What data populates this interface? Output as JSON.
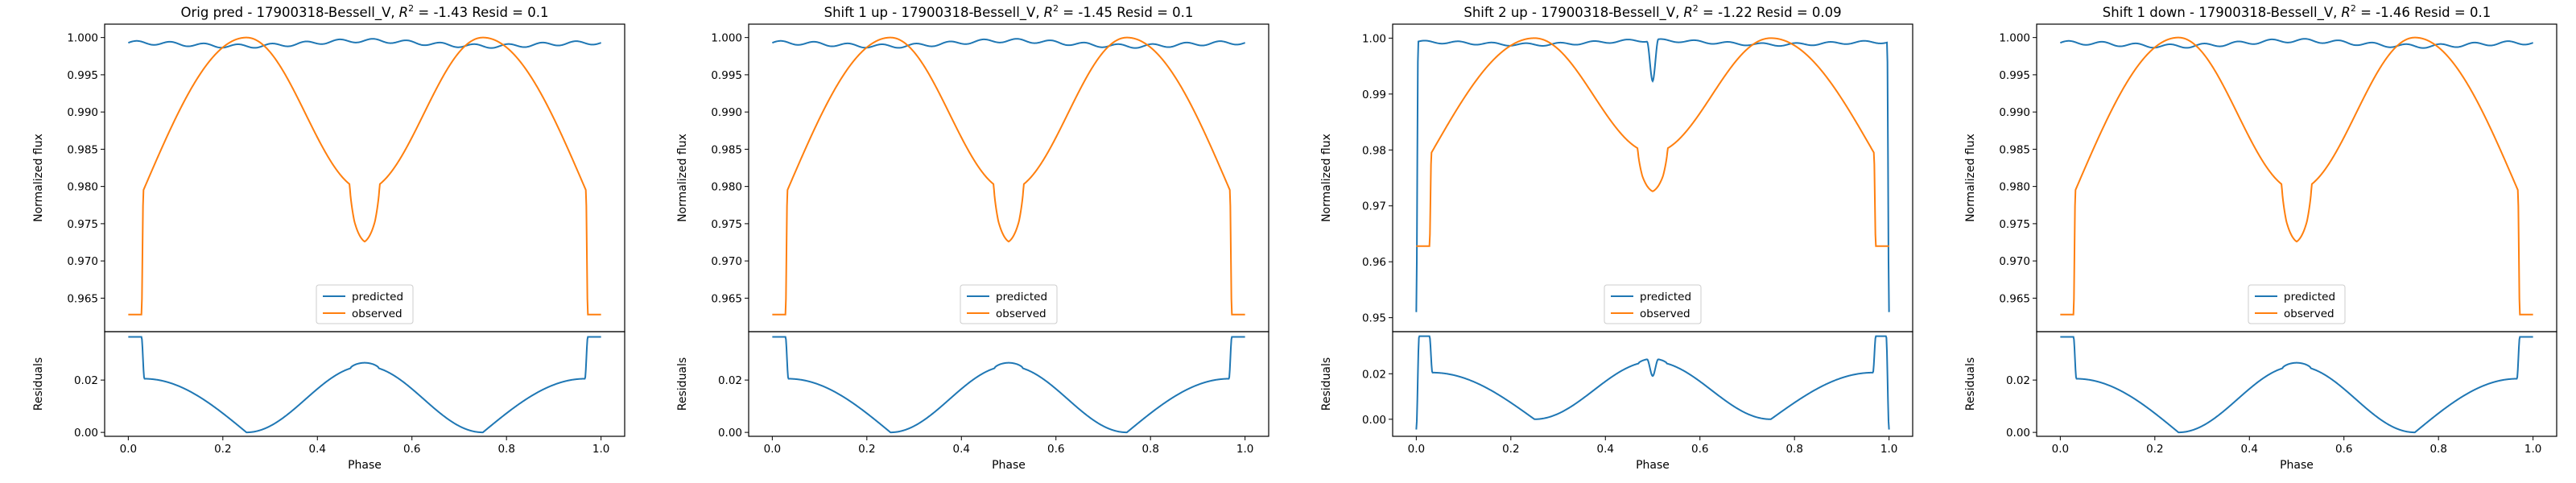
{
  "colors": {
    "predicted": "#1f77b4",
    "observed": "#ff7f0e",
    "axes": "#000000",
    "background": "#ffffff"
  },
  "chart_data": [
    {
      "type": "line",
      "title": "Orig pred - 17900318-Bessell_V, R² = -1.43 Resid = 0.1",
      "title_prefix": "Orig pred - 17900318-Bessell_V,",
      "r2_label": "R",
      "r2_exp": "2",
      "r2_value": " = -1.43",
      "resid_text": " Resid = 0.1",
      "xlabel": "Phase",
      "ylabel_top": "Normalized flux",
      "ylabel_bottom": "Residuals",
      "xlim": [
        -0.05,
        1.05
      ],
      "ylim_top": [
        0.9605,
        1.0018
      ],
      "ylim_bottom": [
        -0.0015,
        0.0385
      ],
      "xticks": [
        0.0,
        0.2,
        0.4,
        0.6,
        0.8,
        1.0
      ],
      "xtick_labels": [
        "0.0",
        "0.2",
        "0.4",
        "0.6",
        "0.8",
        "1.0"
      ],
      "yticks_top": [
        0.965,
        0.97,
        0.975,
        0.98,
        0.985,
        0.99,
        0.995,
        1.0
      ],
      "ytick_labels_top": [
        "0.965",
        "0.970",
        "0.975",
        "0.980",
        "0.985",
        "0.990",
        "0.995",
        "1.000"
      ],
      "yticks_bottom": [
        0.0,
        0.02
      ],
      "ytick_labels_bottom": [
        "0.00",
        "0.02"
      ],
      "legend": {
        "position": "lower center",
        "entries": [
          "predicted",
          "observed"
        ]
      },
      "series": [
        {
          "name": "predicted",
          "kind": "flat",
          "level": 0.9993,
          "dip_depth": 0,
          "edge_low": null
        },
        {
          "name": "observed",
          "kind": "lightcurve",
          "top": 1.0,
          "mid": 0.9795,
          "edge": 0.9628,
          "notch_bottom": 0.9738
        }
      ],
      "residuals": {
        "name": "predicted - observed",
        "peak": 0.0365,
        "secondary_peak": 0.0254,
        "min": 0.0
      }
    },
    {
      "type": "line",
      "title": "Shift 1 up - 17900318-Bessell_V, R² = -1.45 Resid = 0.1",
      "title_prefix": "Shift 1 up - 17900318-Bessell_V,",
      "r2_label": "R",
      "r2_exp": "2",
      "r2_value": " = -1.45",
      "resid_text": " Resid = 0.1",
      "xlabel": "Phase",
      "ylabel_top": "Normalized flux",
      "ylabel_bottom": "Residuals",
      "xlim": [
        -0.05,
        1.05
      ],
      "ylim_top": [
        0.9605,
        1.0018
      ],
      "ylim_bottom": [
        -0.0015,
        0.0385
      ],
      "xticks": [
        0.0,
        0.2,
        0.4,
        0.6,
        0.8,
        1.0
      ],
      "xtick_labels": [
        "0.0",
        "0.2",
        "0.4",
        "0.6",
        "0.8",
        "1.0"
      ],
      "yticks_top": [
        0.965,
        0.97,
        0.975,
        0.98,
        0.985,
        0.99,
        0.995,
        1.0
      ],
      "ytick_labels_top": [
        "0.965",
        "0.970",
        "0.975",
        "0.980",
        "0.985",
        "0.990",
        "0.995",
        "1.000"
      ],
      "yticks_bottom": [
        0.0,
        0.02
      ],
      "ytick_labels_bottom": [
        "0.00",
        "0.02"
      ],
      "legend": {
        "position": "lower center",
        "entries": [
          "predicted",
          "observed"
        ]
      },
      "series": [
        {
          "name": "predicted",
          "kind": "flat",
          "level": 0.9993,
          "dip_depth": 0,
          "edge_low": null
        },
        {
          "name": "observed",
          "kind": "lightcurve",
          "top": 1.0,
          "mid": 0.9795,
          "edge": 0.9628,
          "notch_bottom": 0.9738
        }
      ],
      "residuals": {
        "name": "predicted - observed",
        "peak": 0.0365,
        "secondary_peak": 0.0254,
        "min": 0.0
      }
    },
    {
      "type": "line",
      "title": "Shift 2 up - 17900318-Bessell_V, R² = -1.22 Resid = 0.09",
      "title_prefix": "Shift 2 up - 17900318-Bessell_V,",
      "r2_label": "R",
      "r2_exp": "2",
      "r2_value": " = -1.22",
      "resid_text": " Resid = 0.09",
      "xlabel": "Phase",
      "ylabel_top": "Normalized flux",
      "ylabel_bottom": "Residuals",
      "xlim": [
        -0.05,
        1.05
      ],
      "ylim_top": [
        0.9475,
        1.0025
      ],
      "ylim_bottom": [
        -0.0075,
        0.0385
      ],
      "xticks": [
        0.0,
        0.2,
        0.4,
        0.6,
        0.8,
        1.0
      ],
      "xtick_labels": [
        "0.0",
        "0.2",
        "0.4",
        "0.6",
        "0.8",
        "1.0"
      ],
      "yticks_top": [
        0.95,
        0.96,
        0.97,
        0.98,
        0.99,
        1.0
      ],
      "ytick_labels_top": [
        "0.95",
        "0.96",
        "0.97",
        "0.98",
        "0.99",
        "1.00"
      ],
      "yticks_bottom": [
        0.0,
        0.02
      ],
      "ytick_labels_bottom": [
        "0.00",
        "0.02"
      ],
      "legend": {
        "position": "lower center",
        "entries": [
          "predicted",
          "observed"
        ]
      },
      "series": [
        {
          "name": "predicted",
          "kind": "flat",
          "level": 0.9993,
          "dip_depth": 0.0073,
          "edge_low": 0.951
        },
        {
          "name": "observed",
          "kind": "lightcurve",
          "top": 1.0,
          "mid": 0.9795,
          "edge": 0.9628,
          "notch_bottom": 0.9738
        }
      ],
      "residuals": {
        "name": "predicted - observed",
        "peak": 0.0365,
        "secondary_peak": 0.0254,
        "min": 0.0,
        "edge_low": -0.0045,
        "center_dip": 0.019
      }
    },
    {
      "type": "line",
      "title": "Shift 1 down - 17900318-Bessell_V, R² = -1.46 Resid = 0.1",
      "title_prefix": "Shift 1 down - 17900318-Bessell_V,",
      "r2_label": "R",
      "r2_exp": "2",
      "r2_value": " = -1.46",
      "resid_text": " Resid = 0.1",
      "xlabel": "Phase",
      "ylabel_top": "Normalized flux",
      "ylabel_bottom": "Residuals",
      "xlim": [
        -0.05,
        1.05
      ],
      "ylim_top": [
        0.9605,
        1.0018
      ],
      "ylim_bottom": [
        -0.0015,
        0.0385
      ],
      "xticks": [
        0.0,
        0.2,
        0.4,
        0.6,
        0.8,
        1.0
      ],
      "xtick_labels": [
        "0.0",
        "0.2",
        "0.4",
        "0.6",
        "0.8",
        "1.0"
      ],
      "yticks_top": [
        0.965,
        0.97,
        0.975,
        0.98,
        0.985,
        0.99,
        0.995,
        1.0
      ],
      "ytick_labels_top": [
        "0.965",
        "0.970",
        "0.975",
        "0.980",
        "0.985",
        "0.990",
        "0.995",
        "1.000"
      ],
      "yticks_bottom": [
        0.0,
        0.02
      ],
      "ytick_labels_bottom": [
        "0.00",
        "0.02"
      ],
      "legend": {
        "position": "lower center",
        "entries": [
          "predicted",
          "observed"
        ]
      },
      "series": [
        {
          "name": "predicted",
          "kind": "flat",
          "level": 0.9993,
          "dip_depth": 0,
          "edge_low": null
        },
        {
          "name": "observed",
          "kind": "lightcurve",
          "top": 1.0,
          "mid": 0.9795,
          "edge": 0.9628,
          "notch_bottom": 0.9738
        }
      ],
      "residuals": {
        "name": "predicted - observed",
        "peak": 0.0365,
        "secondary_peak": 0.0254,
        "min": 0.0
      }
    }
  ]
}
